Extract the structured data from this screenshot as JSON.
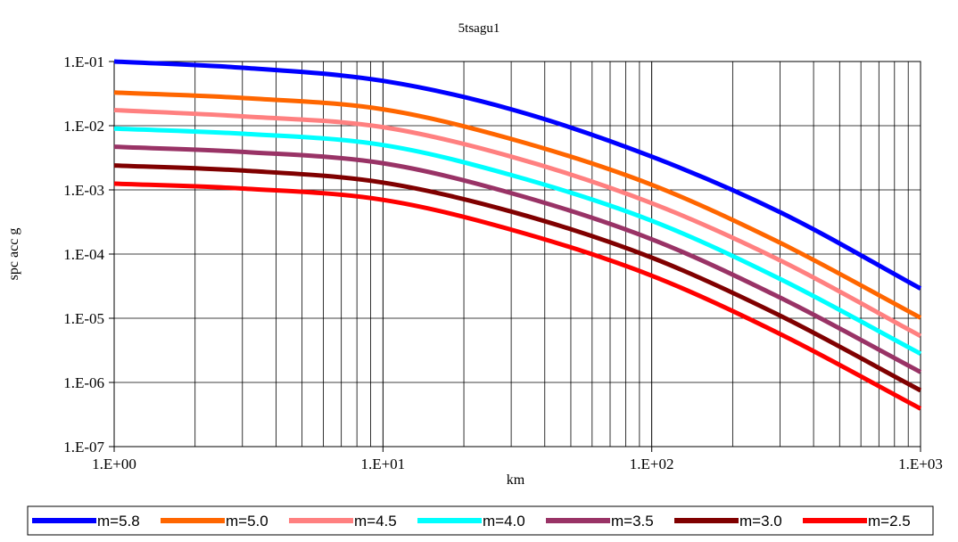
{
  "chart_data": {
    "type": "line",
    "title": "5tsagu1",
    "xlabel": "km",
    "ylabel": "spc acc g",
    "xscale": "log",
    "yscale": "log",
    "xlim": [
      1,
      1000
    ],
    "ylim": [
      1e-07,
      0.1
    ],
    "grid": true,
    "legend_position": "bottom",
    "x_tick_labels": [
      "1.E+00",
      "1.E+01",
      "1.E+02",
      "1.E+03"
    ],
    "y_tick_labels": [
      "1.E-07",
      "1.E-06",
      "1.E-05",
      "1.E-04",
      "1.E-03",
      "1.E-02",
      "1.E-01"
    ],
    "x": [
      1,
      3,
      10,
      30,
      100,
      300,
      1000
    ],
    "series": [
      {
        "name": "m=5.8",
        "color": "#0000FF",
        "values": [
          0.1,
          0.08,
          0.05,
          0.018,
          0.0033,
          0.00045,
          2.9e-05
        ]
      },
      {
        "name": "m=5.0",
        "color": "#FF6600",
        "values": [
          0.033,
          0.027,
          0.018,
          0.0062,
          0.0012,
          0.00015,
          1.02e-05
        ]
      },
      {
        "name": "m=4.5",
        "color": "#FF8080",
        "values": [
          0.0175,
          0.014,
          0.0095,
          0.0033,
          0.00062,
          8e-05,
          5.3e-06
        ]
      },
      {
        "name": "m=4.0",
        "color": "#00FFFF",
        "values": [
          0.009,
          0.0075,
          0.005,
          0.0017,
          0.00033,
          4.1e-05,
          2.8e-06
        ]
      },
      {
        "name": "m=3.5",
        "color": "#993366",
        "values": [
          0.0047,
          0.0039,
          0.0026,
          0.00089,
          0.00017,
          2.1e-05,
          1.45e-06
        ]
      },
      {
        "name": "m=3.0",
        "color": "#800000",
        "values": [
          0.0024,
          0.002,
          0.0013,
          0.00046,
          8.8e-05,
          1.1e-05,
          7.5e-07
        ]
      },
      {
        "name": "m=2.5",
        "color": "#FF0000",
        "values": [
          0.00125,
          0.00105,
          0.0007,
          0.00024,
          4.6e-05,
          5.7e-06,
          3.9e-07
        ]
      }
    ]
  }
}
